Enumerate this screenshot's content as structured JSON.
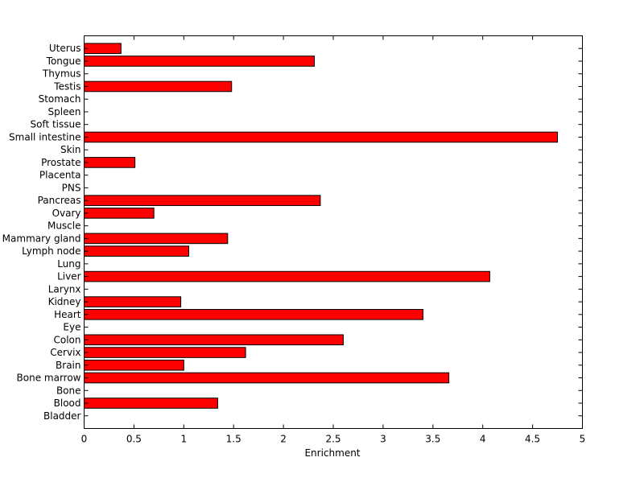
{
  "chart_data": {
    "type": "bar",
    "orientation": "horizontal",
    "title": "",
    "xlabel": "Enrichment",
    "ylabel": "",
    "xlim": [
      0,
      5
    ],
    "xticks": [
      "0",
      "0.5",
      "1",
      "1.5",
      "2",
      "2.5",
      "3",
      "3.5",
      "4",
      "4.5",
      "5"
    ],
    "grid": false,
    "legend": "none",
    "bar_color": "#ff0000",
    "edge_color": "#000000",
    "categories": [
      "Bladder",
      "Blood",
      "Bone",
      "Bone marrow",
      "Brain",
      "Cervix",
      "Colon",
      "Eye",
      "Heart",
      "Kidney",
      "Larynx",
      "Liver",
      "Lung",
      "Lymph node",
      "Mammary gland",
      "Muscle",
      "Ovary",
      "Pancreas",
      "PNS",
      "Placenta",
      "Prostate",
      "Skin",
      "Small intestine",
      "Soft tissue",
      "Spleen",
      "Stomach",
      "Testis",
      "Thymus",
      "Tongue",
      "Uterus"
    ],
    "values": [
      0,
      1.34,
      0,
      3.66,
      1.0,
      1.62,
      2.6,
      0,
      3.4,
      0.97,
      0,
      4.07,
      0,
      1.05,
      1.44,
      0,
      0.7,
      2.37,
      0,
      0,
      0.51,
      0,
      4.75,
      0,
      0,
      0,
      1.48,
      0,
      2.31,
      0.37
    ]
  }
}
